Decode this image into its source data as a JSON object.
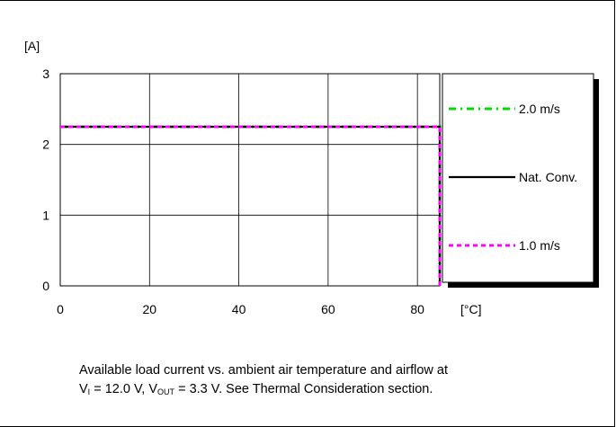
{
  "chart_data": {
    "type": "line",
    "xlabel": "[°C]",
    "ylabel": "[A]",
    "xlim": [
      0,
      85
    ],
    "ylim": [
      0,
      3
    ],
    "x_ticks": [
      "0",
      "20",
      "40",
      "60",
      "80"
    ],
    "y_ticks": [
      "0",
      "1",
      "2",
      "3"
    ],
    "grid": true,
    "legend_position": "right",
    "series": [
      {
        "name": "2.0 m/s",
        "color": "#00dd00",
        "dash": "dashdot",
        "x": [
          0,
          85,
          85
        ],
        "y": [
          2.25,
          2.25,
          0
        ]
      },
      {
        "name": "Nat. Conv.",
        "color": "#000000",
        "dash": "solid",
        "x": [
          0,
          85,
          85
        ],
        "y": [
          2.25,
          2.25,
          0
        ]
      },
      {
        "name": "1.0 m/s",
        "color": "#ff00ff",
        "dash": "dotted",
        "x": [
          0,
          85,
          85
        ],
        "y": [
          2.25,
          2.25,
          0
        ]
      }
    ]
  },
  "caption": {
    "line1": "Available load current vs. ambient air temperature and airflow at",
    "v_i_prefix": "V",
    "v_i_sub": "I",
    "v_i_value": " = 12.0 V, ",
    "v_out_prefix": "V",
    "v_out_sub": "OUT",
    "v_out_value": " = 3.3 V. See Thermal Consideration section."
  }
}
